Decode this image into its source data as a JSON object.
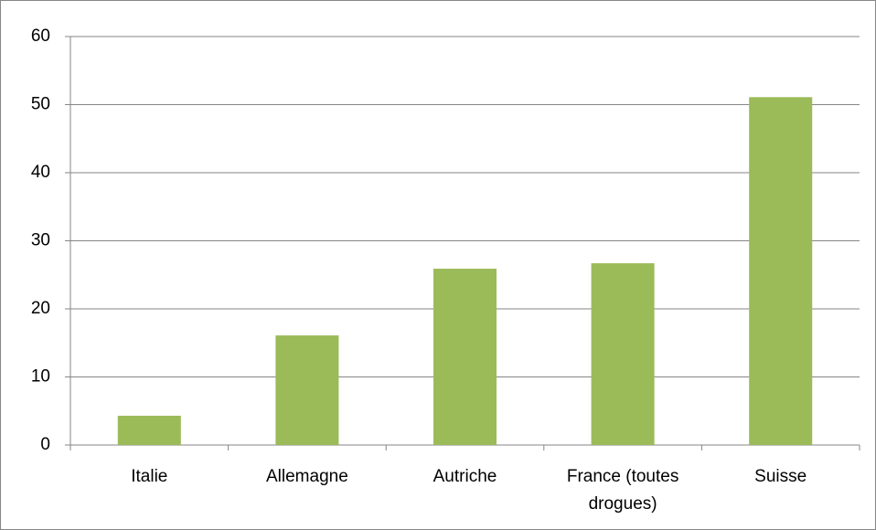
{
  "chart_data": {
    "type": "bar",
    "categories": [
      "Italie",
      "Allemagne",
      "Autriche",
      "France (toutes drogues)",
      "Suisse"
    ],
    "values": [
      4.3,
      16.1,
      25.9,
      26.7,
      51.1
    ],
    "color": "#9bbb59",
    "ylim": [
      0,
      60
    ],
    "yticks": [
      0,
      10,
      20,
      30,
      40,
      50,
      60
    ],
    "grid": true
  }
}
